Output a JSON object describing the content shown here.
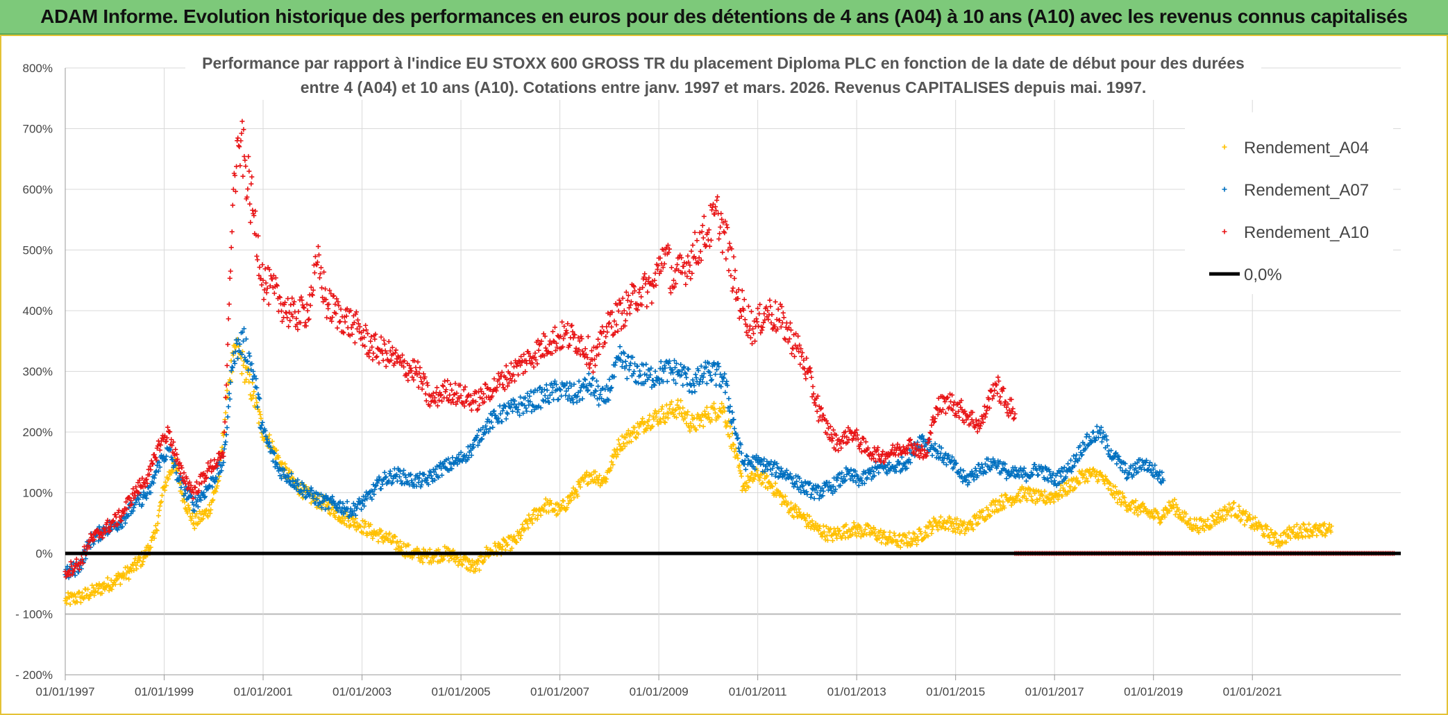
{
  "banner": {
    "title": "ADAM Informe. Evolution historique des performances en euros pour des détentions de 4 ans (A04) à 10 ans (A10) avec les revenus connus capitalisés"
  },
  "chart_data": {
    "type": "scatter",
    "title_line1": "Performance par rapport à l'indice EU STOXX 600 GROSS TR  du placement Diploma PLC en fonction de la date de début pour des durées",
    "title_line2": "entre 4 (A04) et 10 ans (A10). Cotations entre janv. 1997 et mars. 2026. Revenus CAPITALISES depuis mai. 1997.",
    "xlabel": "",
    "ylabel": "",
    "x_range": [
      "1997-01-01",
      "2023-12-31"
    ],
    "ylim": [
      -200,
      800
    ],
    "y_ticks": [
      "800%",
      "700%",
      "600%",
      "500%",
      "400%",
      "300%",
      "200%",
      "100%",
      "0%",
      "- 100%",
      "- 200%"
    ],
    "y_tick_values": [
      800,
      700,
      600,
      500,
      400,
      300,
      200,
      100,
      0,
      -100,
      -200
    ],
    "x_ticks": [
      "01/01/1997",
      "01/01/1999",
      "01/01/2001",
      "01/01/2003",
      "01/01/2005",
      "01/01/2007",
      "01/01/2009",
      "01/01/2011",
      "01/01/2013",
      "01/01/2015",
      "01/01/2017",
      "01/01/2019",
      "01/01/2021"
    ],
    "x_tick_years": [
      1997,
      1999,
      2001,
      2003,
      2005,
      2007,
      2009,
      2011,
      2013,
      2015,
      2017,
      2019,
      2021
    ],
    "grid": true,
    "legend_position": "top-right",
    "reference_line": {
      "name": "0,0%",
      "value": 0,
      "color": "#000000"
    },
    "series": [
      {
        "name": "Rendement_A04",
        "color": "#ffc000",
        "marker": "+",
        "points": [
          [
            1997.0,
            -78
          ],
          [
            1997.3,
            -72
          ],
          [
            1997.6,
            -62
          ],
          [
            1998.0,
            -45
          ],
          [
            1998.3,
            -30
          ],
          [
            1998.6,
            -5
          ],
          [
            1998.8,
            25
          ],
          [
            1999.0,
            110
          ],
          [
            1999.2,
            150
          ],
          [
            1999.4,
            90
          ],
          [
            1999.6,
            50
          ],
          [
            1999.9,
            70
          ],
          [
            2000.1,
            120
          ],
          [
            2000.3,
            280
          ],
          [
            2000.45,
            340
          ],
          [
            2000.6,
            310
          ],
          [
            2000.8,
            260
          ],
          [
            2001.0,
            200
          ],
          [
            2001.2,
            175
          ],
          [
            2001.4,
            140
          ],
          [
            2001.7,
            110
          ],
          [
            2002.0,
            90
          ],
          [
            2002.3,
            80
          ],
          [
            2002.6,
            60
          ],
          [
            2002.9,
            50
          ],
          [
            2003.2,
            35
          ],
          [
            2003.5,
            25
          ],
          [
            2003.8,
            10
          ],
          [
            2004.0,
            0
          ],
          [
            2004.3,
            -5
          ],
          [
            2004.7,
            0
          ],
          [
            2005.0,
            -10
          ],
          [
            2005.3,
            -25
          ],
          [
            2005.5,
            0
          ],
          [
            2005.8,
            10
          ],
          [
            2006.1,
            20
          ],
          [
            2006.4,
            55
          ],
          [
            2006.7,
            80
          ],
          [
            2007.0,
            70
          ],
          [
            2007.3,
            100
          ],
          [
            2007.6,
            130
          ],
          [
            2007.9,
            120
          ],
          [
            2008.2,
            180
          ],
          [
            2008.5,
            200
          ],
          [
            2008.8,
            220
          ],
          [
            2009.1,
            230
          ],
          [
            2009.4,
            240
          ],
          [
            2009.7,
            210
          ],
          [
            2010.0,
            230
          ],
          [
            2010.3,
            240
          ],
          [
            2010.5,
            180
          ],
          [
            2010.7,
            110
          ],
          [
            2011.0,
            130
          ],
          [
            2011.3,
            110
          ],
          [
            2011.6,
            80
          ],
          [
            2011.9,
            60
          ],
          [
            2012.2,
            40
          ],
          [
            2012.5,
            30
          ],
          [
            2012.9,
            40
          ],
          [
            2013.3,
            35
          ],
          [
            2013.6,
            25
          ],
          [
            2013.9,
            20
          ],
          [
            2014.2,
            25
          ],
          [
            2014.6,
            50
          ],
          [
            2014.9,
            50
          ],
          [
            2015.2,
            40
          ],
          [
            2015.5,
            60
          ],
          [
            2015.8,
            80
          ],
          [
            2016.1,
            90
          ],
          [
            2016.4,
            100
          ],
          [
            2016.7,
            90
          ],
          [
            2017.0,
            95
          ],
          [
            2017.3,
            110
          ],
          [
            2017.6,
            130
          ],
          [
            2017.9,
            130
          ],
          [
            2018.2,
            100
          ],
          [
            2018.5,
            80
          ],
          [
            2018.8,
            70
          ],
          [
            2019.1,
            60
          ],
          [
            2019.4,
            80
          ],
          [
            2019.7,
            50
          ],
          [
            2020.0,
            45
          ],
          [
            2020.3,
            60
          ],
          [
            2020.6,
            75
          ],
          [
            2020.9,
            55
          ],
          [
            2021.2,
            40
          ],
          [
            2021.5,
            20
          ],
          [
            2021.8,
            35
          ],
          [
            2022.1,
            40
          ],
          [
            2022.4,
            35
          ],
          [
            2022.6,
            45
          ]
        ]
      },
      {
        "name": "Rendement_A07",
        "color": "#0070c0",
        "marker": "+",
        "points": [
          [
            1997.0,
            -35
          ],
          [
            1997.3,
            -20
          ],
          [
            1997.5,
            20
          ],
          [
            1997.8,
            40
          ],
          [
            1998.1,
            50
          ],
          [
            1998.4,
            80
          ],
          [
            1998.7,
            100
          ],
          [
            1998.9,
            150
          ],
          [
            1999.1,
            170
          ],
          [
            1999.3,
            120
          ],
          [
            1999.6,
            80
          ],
          [
            1999.9,
            110
          ],
          [
            2000.2,
            150
          ],
          [
            2000.4,
            330
          ],
          [
            2000.6,
            350
          ],
          [
            2000.8,
            300
          ],
          [
            2001.0,
            200
          ],
          [
            2001.3,
            140
          ],
          [
            2001.6,
            120
          ],
          [
            2001.9,
            100
          ],
          [
            2002.2,
            85
          ],
          [
            2002.5,
            80
          ],
          [
            2002.8,
            70
          ],
          [
            2003.1,
            90
          ],
          [
            2003.4,
            120
          ],
          [
            2003.7,
            130
          ],
          [
            2004.0,
            120
          ],
          [
            2004.3,
            120
          ],
          [
            2004.6,
            140
          ],
          [
            2004.9,
            150
          ],
          [
            2005.2,
            170
          ],
          [
            2005.5,
            210
          ],
          [
            2005.8,
            230
          ],
          [
            2006.1,
            240
          ],
          [
            2006.4,
            250
          ],
          [
            2006.7,
            260
          ],
          [
            2007.0,
            270
          ],
          [
            2007.3,
            260
          ],
          [
            2007.6,
            280
          ],
          [
            2007.9,
            250
          ],
          [
            2008.2,
            320
          ],
          [
            2008.5,
            300
          ],
          [
            2008.8,
            290
          ],
          [
            2009.1,
            300
          ],
          [
            2009.4,
            300
          ],
          [
            2009.7,
            280
          ],
          [
            2010.0,
            300
          ],
          [
            2010.3,
            290
          ],
          [
            2010.5,
            220
          ],
          [
            2010.7,
            150
          ],
          [
            2011.0,
            150
          ],
          [
            2011.3,
            140
          ],
          [
            2011.6,
            130
          ],
          [
            2011.9,
            110
          ],
          [
            2012.2,
            100
          ],
          [
            2012.5,
            110
          ],
          [
            2012.8,
            130
          ],
          [
            2013.1,
            120
          ],
          [
            2013.4,
            140
          ],
          [
            2013.7,
            140
          ],
          [
            2014.0,
            150
          ],
          [
            2014.3,
            190
          ],
          [
            2014.6,
            170
          ],
          [
            2014.9,
            150
          ],
          [
            2015.2,
            120
          ],
          [
            2015.5,
            140
          ],
          [
            2015.8,
            150
          ],
          [
            2016.1,
            130
          ],
          [
            2016.4,
            130
          ],
          [
            2016.7,
            140
          ],
          [
            2017.0,
            120
          ],
          [
            2017.3,
            140
          ],
          [
            2017.6,
            180
          ],
          [
            2017.9,
            200
          ],
          [
            2018.2,
            160
          ],
          [
            2018.5,
            130
          ],
          [
            2018.8,
            150
          ],
          [
            2019.1,
            130
          ],
          [
            2019.2,
            120
          ]
        ]
      },
      {
        "name": "Rendement_A10",
        "color": "#e81416",
        "marker": "+",
        "points": [
          [
            1997.0,
            -30
          ],
          [
            1997.3,
            -15
          ],
          [
            1997.5,
            20
          ],
          [
            1997.8,
            40
          ],
          [
            1998.1,
            60
          ],
          [
            1998.4,
            100
          ],
          [
            1998.7,
            130
          ],
          [
            1998.9,
            180
          ],
          [
            1999.1,
            200
          ],
          [
            1999.3,
            140
          ],
          [
            1999.6,
            100
          ],
          [
            1999.9,
            140
          ],
          [
            2000.2,
            160
          ],
          [
            2000.4,
            600
          ],
          [
            2000.55,
            680
          ],
          [
            2000.8,
            560
          ],
          [
            2001.0,
            450
          ],
          [
            2001.3,
            420
          ],
          [
            2001.6,
            390
          ],
          [
            2001.9,
            400
          ],
          [
            2002.1,
            480
          ],
          [
            2002.3,
            410
          ],
          [
            2002.6,
            390
          ],
          [
            2002.9,
            370
          ],
          [
            2003.2,
            340
          ],
          [
            2003.5,
            330
          ],
          [
            2003.8,
            310
          ],
          [
            2004.1,
            300
          ],
          [
            2004.4,
            250
          ],
          [
            2004.7,
            270
          ],
          [
            2005.0,
            260
          ],
          [
            2005.3,
            250
          ],
          [
            2005.6,
            270
          ],
          [
            2005.9,
            290
          ],
          [
            2006.2,
            310
          ],
          [
            2006.5,
            330
          ],
          [
            2006.8,
            350
          ],
          [
            2007.1,
            360
          ],
          [
            2007.4,
            350
          ],
          [
            2007.7,
            320
          ],
          [
            2008.0,
            380
          ],
          [
            2008.3,
            400
          ],
          [
            2008.6,
            430
          ],
          [
            2008.9,
            440
          ],
          [
            2009.1,
            500
          ],
          [
            2009.3,
            450
          ],
          [
            2009.6,
            480
          ],
          [
            2009.9,
            520
          ],
          [
            2010.2,
            560
          ],
          [
            2010.4,
            500
          ],
          [
            2010.6,
            420
          ],
          [
            2010.9,
            370
          ],
          [
            2011.2,
            400
          ],
          [
            2011.5,
            380
          ],
          [
            2011.8,
            340
          ],
          [
            2012.0,
            300
          ],
          [
            2012.3,
            220
          ],
          [
            2012.6,
            180
          ],
          [
            2012.9,
            200
          ],
          [
            2013.2,
            170
          ],
          [
            2013.5,
            160
          ],
          [
            2013.8,
            170
          ],
          [
            2014.1,
            180
          ],
          [
            2014.4,
            160
          ],
          [
            2014.6,
            240
          ],
          [
            2014.9,
            250
          ],
          [
            2015.2,
            230
          ],
          [
            2015.5,
            210
          ],
          [
            2015.8,
            280
          ],
          [
            2016.0,
            250
          ],
          [
            2016.2,
            230
          ]
        ],
        "zero_segment": [
          2016.2,
          2023.9
        ]
      }
    ]
  }
}
